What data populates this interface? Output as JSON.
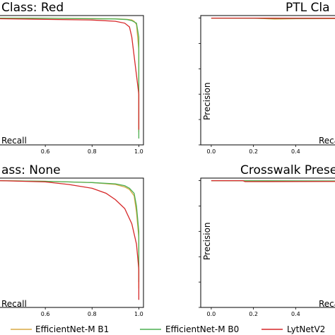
{
  "legend": [
    {
      "label": "EfficientNet-M B1",
      "color": "#d9a843"
    },
    {
      "label": "EfficientNet-M B0",
      "color": "#4caf50"
    },
    {
      "label": "LytNetV2",
      "color": "#d62728"
    }
  ],
  "chart_data": [
    {
      "type": "line",
      "title": "Class: Red",
      "xlabel": "Recall",
      "ylabel": "",
      "xticks": [
        "0.6",
        "0.8",
        "1.0"
      ],
      "xlim": [
        0.4,
        1.02
      ],
      "ylim": [
        0,
        1.02
      ],
      "series": [
        {
          "name": "EfficientNet-M B1",
          "color": "#d9a843",
          "x": [
            0.4,
            0.6,
            0.8,
            0.9,
            0.95,
            0.97,
            0.98,
            0.99,
            1.0,
            1.0
          ],
          "y": [
            1.0,
            0.998,
            0.996,
            0.994,
            0.99,
            0.985,
            0.975,
            0.95,
            0.75,
            0.1
          ]
        },
        {
          "name": "EfficientNet-M B0",
          "color": "#4caf50",
          "x": [
            0.4,
            0.6,
            0.8,
            0.9,
            0.95,
            0.97,
            0.99,
            1.0,
            1.0,
            1.0
          ],
          "y": [
            1.0,
            0.998,
            0.995,
            0.993,
            0.988,
            0.98,
            0.96,
            0.85,
            0.4,
            0.05
          ]
        },
        {
          "name": "LytNetV2",
          "color": "#d62728",
          "x": [
            0.4,
            0.6,
            0.8,
            0.9,
            0.94,
            0.96,
            0.97,
            0.98,
            0.99,
            1.0,
            1.0
          ],
          "y": [
            0.995,
            0.99,
            0.985,
            0.975,
            0.96,
            0.93,
            0.85,
            0.7,
            0.55,
            0.4,
            0.12
          ]
        }
      ]
    },
    {
      "type": "line",
      "title": "PTL Cla",
      "xlabel": "Reca",
      "ylabel": "Precision",
      "xticks": [
        "0.0",
        "0.2",
        "0.4"
      ],
      "xlim": [
        -0.05,
        0.62
      ],
      "ylim": [
        0,
        1.02
      ],
      "series": [
        {
          "name": "EfficientNet-M B1",
          "color": "#d9a843",
          "x": [
            0.0,
            0.2,
            0.3,
            0.4,
            0.62
          ],
          "y": [
            1.0,
            1.0,
            0.992,
            0.995,
            0.996
          ]
        },
        {
          "name": "EfficientNet-M B0",
          "color": "#4caf50",
          "x": [
            0.0,
            0.2,
            0.4,
            0.62
          ],
          "y": [
            1.0,
            0.998,
            0.996,
            0.997
          ]
        },
        {
          "name": "LytNetV2",
          "color": "#d62728",
          "x": [
            0.0,
            0.2,
            0.4,
            0.62
          ],
          "y": [
            1.0,
            1.0,
            0.999,
            0.999
          ]
        }
      ]
    },
    {
      "type": "line",
      "title": "ass: None",
      "xlabel": "Recall",
      "ylabel": "",
      "xticks": [
        "0.6",
        "0.8",
        "1.0"
      ],
      "xlim": [
        0.4,
        1.02
      ],
      "ylim": [
        0,
        1.02
      ],
      "series": [
        {
          "name": "EfficientNet-M B1",
          "color": "#d9a843",
          "x": [
            0.4,
            0.6,
            0.8,
            0.9,
            0.94,
            0.96,
            0.98,
            0.99,
            1.0,
            1.0
          ],
          "y": [
            1.0,
            0.995,
            0.985,
            0.97,
            0.95,
            0.93,
            0.88,
            0.75,
            0.55,
            0.15
          ]
        },
        {
          "name": "EfficientNet-M B0",
          "color": "#4caf50",
          "x": [
            0.4,
            0.6,
            0.8,
            0.9,
            0.94,
            0.96,
            0.98,
            0.99,
            1.0,
            1.0
          ],
          "y": [
            1.0,
            0.995,
            0.985,
            0.975,
            0.96,
            0.94,
            0.9,
            0.8,
            0.6,
            0.2
          ]
        },
        {
          "name": "LytNetV2",
          "color": "#d62728",
          "x": [
            0.4,
            0.6,
            0.7,
            0.8,
            0.86,
            0.9,
            0.94,
            0.97,
            0.99,
            1.0,
            1.0
          ],
          "y": [
            1.0,
            0.99,
            0.97,
            0.94,
            0.9,
            0.85,
            0.78,
            0.66,
            0.5,
            0.3,
            0.06
          ]
        }
      ]
    },
    {
      "type": "line",
      "title": "Crosswalk Prese",
      "xlabel": "Reca",
      "ylabel": "Precision",
      "xticks": [
        "0.0",
        "0.2",
        "0.4"
      ],
      "xlim": [
        -0.05,
        0.62
      ],
      "ylim": [
        0,
        1.02
      ],
      "series": [
        {
          "name": "EfficientNet-M B1",
          "color": "#d9a843",
          "x": [
            0.0,
            0.62
          ],
          "y": [
            1.0,
            0.995
          ]
        },
        {
          "name": "EfficientNet-M B0",
          "color": "#4caf50",
          "x": [
            0.0,
            0.62
          ],
          "y": [
            1.0,
            0.997
          ]
        },
        {
          "name": "LytNetV2",
          "color": "#d62728",
          "x": [
            0.0,
            0.15,
            0.16,
            0.62
          ],
          "y": [
            1.0,
            1.0,
            0.992,
            0.994
          ]
        }
      ]
    }
  ]
}
